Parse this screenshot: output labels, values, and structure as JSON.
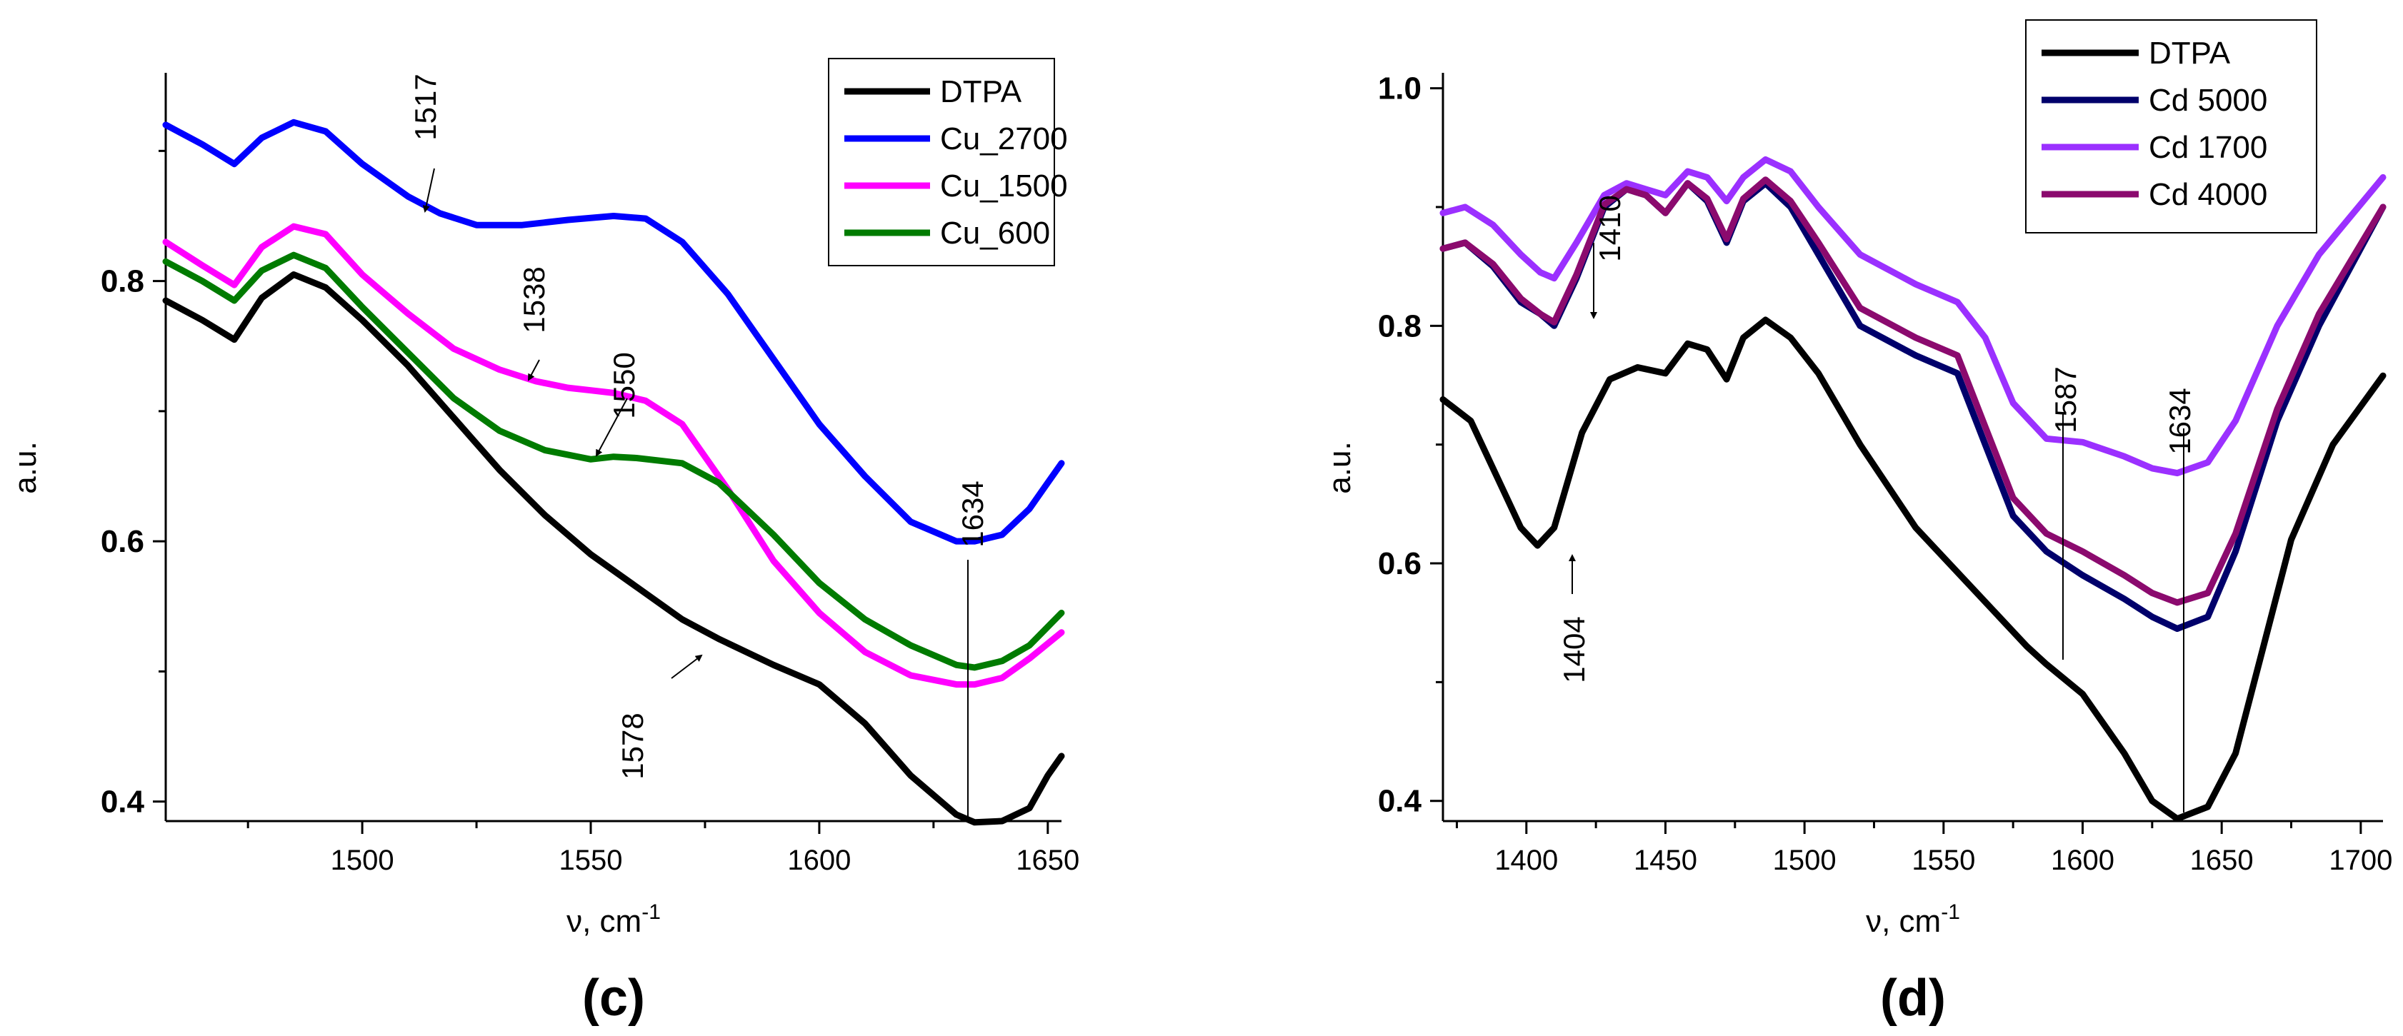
{
  "chart_data": [
    {
      "type": "line",
      "panel_label": "(c)",
      "xlabel": "ν, cm",
      "xlabel_sup": "-1",
      "ylabel": "a.u.",
      "xlim": [
        1457,
        1653
      ],
      "ylim": [
        0.385,
        0.96
      ],
      "xticks": [
        "1500",
        "1550",
        "1600",
        "1650"
      ],
      "yticks": [
        "0.4",
        "0.6",
        "0.8"
      ],
      "legend_position": "top-right",
      "series": [
        {
          "name": "DTPA",
          "color": "#000000",
          "x": [
            1457,
            1465,
            1472,
            1478,
            1485,
            1492,
            1500,
            1510,
            1520,
            1530,
            1540,
            1550,
            1560,
            1570,
            1578,
            1590,
            1600,
            1610,
            1620,
            1630,
            1634,
            1640,
            1646,
            1650,
            1653
          ],
          "y": [
            0.785,
            0.77,
            0.755,
            0.787,
            0.805,
            0.795,
            0.77,
            0.735,
            0.695,
            0.655,
            0.62,
            0.59,
            0.565,
            0.54,
            0.525,
            0.505,
            0.49,
            0.46,
            0.42,
            0.39,
            0.384,
            0.385,
            0.395,
            0.42,
            0.435
          ]
        },
        {
          "name": "Cu_2700",
          "color": "#0000ff",
          "x": [
            1457,
            1465,
            1472,
            1478,
            1485,
            1492,
            1500,
            1510,
            1517,
            1525,
            1535,
            1545,
            1555,
            1562,
            1570,
            1580,
            1590,
            1600,
            1610,
            1620,
            1630,
            1634,
            1640,
            1646,
            1650,
            1653
          ],
          "y": [
            0.92,
            0.905,
            0.89,
            0.91,
            0.922,
            0.915,
            0.89,
            0.865,
            0.852,
            0.843,
            0.843,
            0.847,
            0.85,
            0.848,
            0.83,
            0.79,
            0.74,
            0.69,
            0.65,
            0.615,
            0.6,
            0.6,
            0.605,
            0.625,
            0.645,
            0.66
          ]
        },
        {
          "name": "Cu_1500",
          "color": "#ff00ff",
          "x": [
            1457,
            1465,
            1472,
            1478,
            1485,
            1492,
            1500,
            1510,
            1520,
            1530,
            1538,
            1545,
            1550,
            1555,
            1562,
            1570,
            1580,
            1590,
            1600,
            1610,
            1620,
            1630,
            1634,
            1640,
            1646,
            1653
          ],
          "y": [
            0.83,
            0.812,
            0.797,
            0.826,
            0.842,
            0.836,
            0.805,
            0.775,
            0.748,
            0.732,
            0.723,
            0.718,
            0.716,
            0.714,
            0.708,
            0.69,
            0.64,
            0.585,
            0.545,
            0.515,
            0.497,
            0.49,
            0.49,
            0.495,
            0.51,
            0.53
          ]
        },
        {
          "name": "Cu_600",
          "color": "#007b00",
          "x": [
            1457,
            1465,
            1472,
            1478,
            1485,
            1492,
            1500,
            1510,
            1520,
            1530,
            1540,
            1550,
            1555,
            1560,
            1570,
            1578,
            1590,
            1600,
            1610,
            1620,
            1630,
            1634,
            1640,
            1646,
            1653
          ],
          "y": [
            0.815,
            0.8,
            0.785,
            0.808,
            0.82,
            0.81,
            0.78,
            0.745,
            0.71,
            0.685,
            0.67,
            0.663,
            0.665,
            0.664,
            0.66,
            0.645,
            0.605,
            0.568,
            0.54,
            0.52,
            0.505,
            0.503,
            0.508,
            0.52,
            0.545
          ]
        }
      ],
      "annotations": [
        {
          "text": "1517",
          "x": 1517,
          "y": 0.852
        },
        {
          "text": "1538",
          "x": 1538,
          "y": 0.723
        },
        {
          "text": "1550",
          "x": 1550,
          "y": 0.665
        },
        {
          "text": "1578",
          "x": 1578,
          "y": 0.525
        },
        {
          "text": "1634",
          "x": 1634,
          "y": 0.6
        }
      ]
    },
    {
      "type": "line",
      "panel_label": "(d)",
      "xlabel": "ν, cm",
      "xlabel_sup": "-1",
      "ylabel": "a.u.",
      "xlim": [
        1370,
        1708
      ],
      "ylim": [
        0.383,
        1.013
      ],
      "xticks": [
        "1400",
        "1450",
        "1500",
        "1550",
        "1600",
        "1650",
        "1700"
      ],
      "yticks": [
        "0.4",
        "0.6",
        "0.8",
        "1.0"
      ],
      "legend_position": "top-right",
      "series": [
        {
          "name": "DTPA",
          "color": "#000000",
          "x": [
            1370,
            1380,
            1390,
            1398,
            1404,
            1410,
            1420,
            1430,
            1440,
            1450,
            1458,
            1465,
            1472,
            1478,
            1486,
            1495,
            1505,
            1520,
            1540,
            1560,
            1580,
            1587,
            1600,
            1615,
            1625,
            1634,
            1645,
            1655,
            1665,
            1675,
            1690,
            1708
          ],
          "y": [
            0.738,
            0.72,
            0.67,
            0.63,
            0.615,
            0.63,
            0.71,
            0.755,
            0.765,
            0.76,
            0.785,
            0.78,
            0.755,
            0.79,
            0.805,
            0.79,
            0.76,
            0.7,
            0.63,
            0.58,
            0.53,
            0.515,
            0.49,
            0.44,
            0.4,
            0.385,
            0.395,
            0.44,
            0.53,
            0.62,
            0.7,
            0.758
          ]
        },
        {
          "name": "Cd 5000",
          "color": "#00006b",
          "x": [
            1370,
            1378,
            1388,
            1398,
            1405,
            1410,
            1418,
            1428,
            1436,
            1443,
            1450,
            1458,
            1465,
            1472,
            1478,
            1486,
            1495,
            1505,
            1520,
            1540,
            1555,
            1565,
            1575,
            1587,
            1600,
            1615,
            1625,
            1634,
            1645,
            1655,
            1670,
            1685,
            1708
          ],
          "y": [
            0.865,
            0.87,
            0.85,
            0.82,
            0.81,
            0.8,
            0.84,
            0.9,
            0.915,
            0.91,
            0.895,
            0.92,
            0.905,
            0.87,
            0.905,
            0.92,
            0.9,
            0.86,
            0.8,
            0.775,
            0.76,
            0.7,
            0.64,
            0.61,
            0.59,
            0.57,
            0.555,
            0.545,
            0.555,
            0.61,
            0.72,
            0.8,
            0.9
          ]
        },
        {
          "name": "Cd 1700",
          "color": "#9b30ff",
          "x": [
            1370,
            1378,
            1388,
            1398,
            1405,
            1410,
            1418,
            1428,
            1436,
            1443,
            1450,
            1458,
            1465,
            1472,
            1478,
            1486,
            1495,
            1505,
            1520,
            1540,
            1555,
            1565,
            1575,
            1587,
            1600,
            1615,
            1625,
            1634,
            1645,
            1655,
            1670,
            1685,
            1708
          ],
          "y": [
            0.895,
            0.9,
            0.885,
            0.86,
            0.845,
            0.84,
            0.87,
            0.91,
            0.92,
            0.915,
            0.91,
            0.93,
            0.925,
            0.905,
            0.925,
            0.94,
            0.93,
            0.9,
            0.86,
            0.835,
            0.82,
            0.79,
            0.735,
            0.705,
            0.702,
            0.69,
            0.68,
            0.676,
            0.685,
            0.72,
            0.8,
            0.86,
            0.925
          ]
        },
        {
          "name": "Cd 4000",
          "color": "#8b0a6e",
          "x": [
            1370,
            1378,
            1388,
            1398,
            1405,
            1410,
            1418,
            1428,
            1436,
            1443,
            1450,
            1458,
            1465,
            1472,
            1478,
            1486,
            1495,
            1505,
            1520,
            1540,
            1555,
            1565,
            1575,
            1587,
            1600,
            1615,
            1625,
            1634,
            1645,
            1655,
            1670,
            1685,
            1708
          ],
          "y": [
            0.865,
            0.87,
            0.852,
            0.823,
            0.81,
            0.803,
            0.843,
            0.902,
            0.915,
            0.91,
            0.895,
            0.92,
            0.907,
            0.873,
            0.907,
            0.923,
            0.905,
            0.87,
            0.815,
            0.79,
            0.775,
            0.715,
            0.655,
            0.625,
            0.61,
            0.59,
            0.575,
            0.567,
            0.575,
            0.625,
            0.73,
            0.81,
            0.9
          ]
        }
      ],
      "annotations": [
        {
          "text": "1404",
          "x": 1404,
          "y": 0.615
        },
        {
          "text": "1410",
          "x": 1410,
          "y": 0.81
        },
        {
          "text": "1587",
          "x": 1587,
          "y": 0.515
        },
        {
          "text": "1634",
          "x": 1634,
          "y": 0.385
        }
      ]
    }
  ]
}
